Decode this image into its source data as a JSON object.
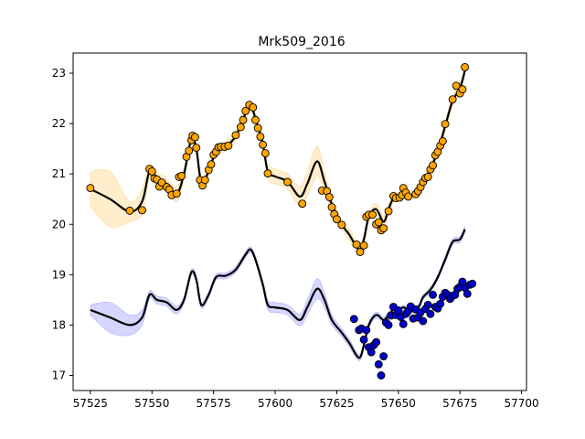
{
  "chart_data": {
    "type": "scatter",
    "title": "Mrk509_2016",
    "xlabel": "",
    "ylabel": "",
    "xlim": [
      57518,
      57702
    ],
    "ylim": [
      16.7,
      23.4
    ],
    "xticks": [
      57525,
      57550,
      57575,
      57600,
      57625,
      57650,
      57675,
      57700
    ],
    "yticks": [
      17,
      18,
      19,
      20,
      21,
      22,
      23
    ],
    "grid": false,
    "series": [
      {
        "color": "#ffa500",
        "band_color": "#ffa500",
        "points": [
          [
            57525,
            20.72
          ],
          [
            57541,
            20.27
          ],
          [
            57546,
            20.28
          ],
          [
            57549,
            21.1
          ],
          [
            57550,
            21.05
          ],
          [
            57551,
            20.91
          ],
          [
            57552,
            20.89
          ],
          [
            57553,
            20.75
          ],
          [
            57554,
            20.83
          ],
          [
            57556,
            20.74
          ],
          [
            57557,
            20.69
          ],
          [
            57558,
            20.58
          ],
          [
            57560,
            20.61
          ],
          [
            57561,
            20.94
          ],
          [
            57562,
            20.96
          ],
          [
            57564,
            21.34
          ],
          [
            57565,
            21.46
          ],
          [
            57566,
            21.67
          ],
          [
            57566.5,
            21.76
          ],
          [
            57567.5,
            21.73
          ],
          [
            57568,
            21.52
          ],
          [
            57569.5,
            20.88
          ],
          [
            57570.5,
            20.77
          ],
          [
            57571.5,
            20.88
          ],
          [
            57573,
            21.08
          ],
          [
            57574,
            21.19
          ],
          [
            57575,
            21.38
          ],
          [
            57576,
            21.44
          ],
          [
            57577,
            21.53
          ],
          [
            57578,
            21.54
          ],
          [
            57579.5,
            21.54
          ],
          [
            57581,
            21.56
          ],
          [
            57584,
            21.77
          ],
          [
            57586,
            21.93
          ],
          [
            57587,
            22.07
          ],
          [
            57588,
            22.25
          ],
          [
            57589.5,
            22.37
          ],
          [
            57591,
            22.32
          ],
          [
            57592,
            22.07
          ],
          [
            57593,
            21.91
          ],
          [
            57594,
            21.74
          ],
          [
            57595,
            21.58
          ],
          [
            57596,
            21.41
          ],
          [
            57597,
            21.01
          ],
          [
            57605,
            20.84
          ],
          [
            57611,
            20.41
          ],
          [
            57619,
            20.67
          ],
          [
            57621,
            20.66
          ],
          [
            57622,
            20.54
          ],
          [
            57623,
            20.34
          ],
          [
            57624,
            20.2
          ],
          [
            57625,
            20.1
          ],
          [
            57627,
            19.99
          ],
          [
            57633,
            19.6
          ],
          [
            57634.5,
            19.45
          ],
          [
            57636,
            19.58
          ],
          [
            57637,
            20.15
          ],
          [
            57638,
            20.19
          ],
          [
            57639.5,
            20.19
          ],
          [
            57641,
            20.0
          ],
          [
            57642,
            20.04
          ],
          [
            57643,
            19.88
          ],
          [
            57644,
            19.92
          ],
          [
            57646,
            20.26
          ],
          [
            57648,
            20.56
          ],
          [
            57649,
            20.52
          ],
          [
            57650.5,
            20.53
          ],
          [
            57651.5,
            20.58
          ],
          [
            57652,
            20.72
          ],
          [
            57653,
            20.63
          ],
          [
            57654,
            20.55
          ],
          [
            57657,
            20.6
          ],
          [
            57658,
            20.66
          ],
          [
            57659,
            20.74
          ],
          [
            57660,
            20.84
          ],
          [
            57661,
            20.92
          ],
          [
            57662,
            20.94
          ],
          [
            57663,
            21.09
          ],
          [
            57664,
            21.17
          ],
          [
            57665,
            21.37
          ],
          [
            57666,
            21.44
          ],
          [
            57667,
            21.56
          ],
          [
            57668,
            21.65
          ],
          [
            57669,
            21.99
          ],
          [
            57672,
            22.48
          ],
          [
            57673.5,
            22.75
          ],
          [
            57675,
            22.6
          ],
          [
            57676,
            22.68
          ],
          [
            57677,
            23.12
          ]
        ],
        "model": [
          [
            57525,
            20.7
          ],
          [
            57533,
            20.5
          ],
          [
            57541,
            20.25
          ],
          [
            57546,
            20.45
          ],
          [
            57549,
            21.05
          ],
          [
            57552,
            20.92
          ],
          [
            57556,
            20.8
          ],
          [
            57560,
            20.6
          ],
          [
            57563,
            21.0
          ],
          [
            57566,
            21.7
          ],
          [
            57568,
            21.5
          ],
          [
            57570,
            20.85
          ],
          [
            57573,
            21.05
          ],
          [
            57576,
            21.45
          ],
          [
            57580,
            21.55
          ],
          [
            57584,
            21.75
          ],
          [
            57588,
            22.2
          ],
          [
            57590,
            22.37
          ],
          [
            57592,
            22.1
          ],
          [
            57595,
            21.6
          ],
          [
            57597,
            21.05
          ],
          [
            57600,
            20.95
          ],
          [
            57605,
            20.85
          ],
          [
            57610,
            20.55
          ],
          [
            57613,
            20.8
          ],
          [
            57617,
            21.25
          ],
          [
            57620,
            20.85
          ],
          [
            57623,
            20.4
          ],
          [
            57627,
            20.0
          ],
          [
            57630,
            19.8
          ],
          [
            57634,
            19.5
          ],
          [
            57636,
            19.7
          ],
          [
            57638,
            20.15
          ],
          [
            57641,
            20.3
          ],
          [
            57644,
            20.05
          ],
          [
            57646,
            20.3
          ],
          [
            57648,
            20.52
          ],
          [
            57650,
            20.56
          ],
          [
            57652,
            20.62
          ],
          [
            57654,
            20.58
          ],
          [
            57658,
            20.62
          ],
          [
            57660,
            20.82
          ],
          [
            57663,
            21.1
          ],
          [
            57666,
            21.45
          ],
          [
            57669,
            21.95
          ],
          [
            57672,
            22.45
          ],
          [
            57675,
            22.7
          ],
          [
            57677,
            23.05
          ]
        ],
        "band_width": [
          0.35,
          0.55,
          0.2,
          0.25,
          0.12,
          0.12,
          0.12,
          0.15,
          0.12,
          0.1,
          0.1,
          0.1,
          0.1,
          0.1,
          0.1,
          0.1,
          0.1,
          0.08,
          0.1,
          0.1,
          0.15,
          0.15,
          0.15,
          0.2,
          0.25,
          0.3,
          0.2,
          0.12,
          0.1,
          0.12,
          0.1,
          0.1,
          0.1,
          0.12,
          0.12,
          0.1,
          0.08,
          0.08,
          0.08,
          0.08,
          0.08,
          0.08,
          0.08,
          0.08,
          0.1,
          0.1,
          0.1,
          0.1
        ]
      },
      {
        "color": "#0000cc",
        "band_color": "#4444ff",
        "points": [
          [
            57632,
            18.12
          ],
          [
            57634,
            17.9
          ],
          [
            57635,
            17.93
          ],
          [
            57636,
            17.71
          ],
          [
            57637,
            17.9
          ],
          [
            57638,
            17.56
          ],
          [
            57639,
            17.46
          ],
          [
            57640,
            17.6
          ],
          [
            57641,
            17.66
          ],
          [
            57642,
            17.22
          ],
          [
            57643,
            17.0
          ],
          [
            57644,
            17.38
          ],
          [
            57645,
            18.05
          ],
          [
            57646,
            18.0
          ],
          [
            57647,
            18.19
          ],
          [
            57648,
            18.36
          ],
          [
            57649,
            18.2
          ],
          [
            57650,
            18.29
          ],
          [
            57651,
            18.16
          ],
          [
            57652,
            18.02
          ],
          [
            57653,
            18.22
          ],
          [
            57654,
            18.28
          ],
          [
            57655,
            18.37
          ],
          [
            57656,
            18.13
          ],
          [
            57657,
            18.31
          ],
          [
            57658,
            18.15
          ],
          [
            57659,
            18.25
          ],
          [
            57660,
            18.08
          ],
          [
            57661,
            18.32
          ],
          [
            57662,
            18.4
          ],
          [
            57663,
            18.22
          ],
          [
            57664,
            18.6
          ],
          [
            57665,
            18.36
          ],
          [
            57666,
            18.33
          ],
          [
            57667,
            18.42
          ],
          [
            57668,
            18.56
          ],
          [
            57669,
            18.64
          ],
          [
            57670,
            18.6
          ],
          [
            57671,
            18.52
          ],
          [
            57672,
            18.58
          ],
          [
            57673,
            18.6
          ],
          [
            57674,
            18.72
          ],
          [
            57675,
            18.76
          ],
          [
            57676,
            18.86
          ],
          [
            57677,
            18.74
          ],
          [
            57678,
            18.62
          ],
          [
            57679,
            18.8
          ],
          [
            57680,
            18.82
          ]
        ],
        "model": [
          [
            57525,
            18.3
          ],
          [
            57533,
            18.15
          ],
          [
            57541,
            18.0
          ],
          [
            57546,
            18.15
          ],
          [
            57549,
            18.6
          ],
          [
            57552,
            18.5
          ],
          [
            57556,
            18.45
          ],
          [
            57560,
            18.3
          ],
          [
            57563,
            18.5
          ],
          [
            57566,
            19.05
          ],
          [
            57568,
            18.9
          ],
          [
            57570,
            18.4
          ],
          [
            57573,
            18.6
          ],
          [
            57576,
            18.95
          ],
          [
            57580,
            18.98
          ],
          [
            57584,
            19.1
          ],
          [
            57588,
            19.4
          ],
          [
            57590,
            19.5
          ],
          [
            57592,
            19.3
          ],
          [
            57595,
            18.8
          ],
          [
            57597,
            18.4
          ],
          [
            57600,
            18.35
          ],
          [
            57605,
            18.3
          ],
          [
            57610,
            18.1
          ],
          [
            57613,
            18.35
          ],
          [
            57617,
            18.72
          ],
          [
            57620,
            18.5
          ],
          [
            57623,
            18.1
          ],
          [
            57627,
            17.85
          ],
          [
            57630,
            17.65
          ],
          [
            57634,
            17.35
          ],
          [
            57636,
            17.6
          ],
          [
            57638,
            18.0
          ],
          [
            57641,
            18.2
          ],
          [
            57644,
            18.1
          ],
          [
            57646,
            18.2
          ],
          [
            57648,
            18.3
          ],
          [
            57650,
            18.3
          ],
          [
            57652,
            18.35
          ],
          [
            57654,
            18.32
          ],
          [
            57658,
            18.35
          ],
          [
            57660,
            18.55
          ],
          [
            57663,
            18.7
          ],
          [
            57666,
            18.95
          ],
          [
            57669,
            19.3
          ],
          [
            57672,
            19.65
          ],
          [
            57675,
            19.7
          ],
          [
            57677,
            19.9
          ]
        ],
        "band_width": [
          0.1,
          0.3,
          0.2,
          0.15,
          0.08,
          0.08,
          0.08,
          0.08,
          0.06,
          0.06,
          0.06,
          0.06,
          0.06,
          0.06,
          0.06,
          0.06,
          0.06,
          0.05,
          0.06,
          0.08,
          0.1,
          0.1,
          0.1,
          0.12,
          0.15,
          0.2,
          0.15,
          0.1,
          0.08,
          0.08,
          0.06,
          0.06,
          0.06,
          0.06,
          0.06,
          0.06,
          0.05,
          0.05,
          0.05,
          0.05,
          0.05,
          0.05,
          0.05,
          0.05,
          0.06,
          0.06,
          0.06,
          0.06
        ]
      }
    ]
  }
}
